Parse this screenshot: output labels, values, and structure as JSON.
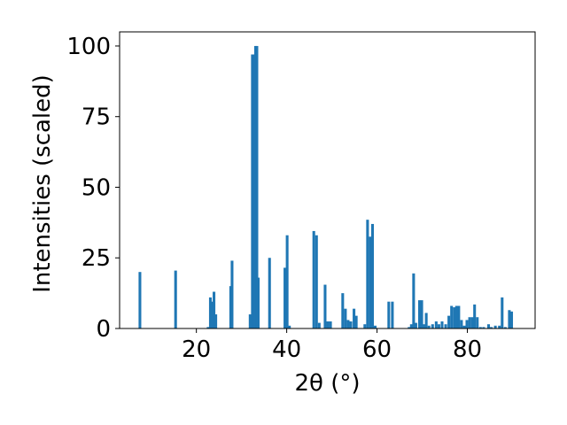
{
  "chart_data": {
    "type": "bar",
    "xlabel": "2θ (°)",
    "ylabel": "Intensities (scaled)",
    "xlim": [
      3,
      95
    ],
    "ylim": [
      0,
      105
    ],
    "xticks": [
      20,
      40,
      60,
      80
    ],
    "yticks": [
      0,
      25,
      50,
      75,
      100
    ],
    "bar_color": "#1f77b4",
    "bar_width": 0.6,
    "grid": false,
    "x": [
      7.5,
      15.4,
      22.6,
      23.1,
      23.4,
      23.9,
      24.3,
      27.6,
      27.9,
      31.9,
      32.4,
      32.8,
      33.1,
      33.4,
      33.7,
      36.2,
      39.6,
      40.1,
      40.6,
      46.0,
      46.6,
      47.2,
      48.5,
      49.1,
      49.7,
      52.4,
      53.0,
      53.6,
      54.2,
      54.9,
      55.4,
      57.3,
      57.9,
      58.5,
      59.0,
      59.6,
      62.6,
      63.4,
      67.1,
      67.6,
      68.1,
      68.6,
      69.4,
      69.9,
      70.4,
      70.9,
      71.5,
      72.3,
      73.1,
      73.7,
      74.4,
      75.2,
      75.9,
      76.5,
      77.1,
      77.6,
      78.1,
      78.7,
      79.3,
      79.9,
      80.5,
      81.1,
      81.6,
      82.2,
      82.9,
      83.6,
      84.7,
      85.3,
      86.2,
      87.1,
      87.7,
      88.4,
      89.3,
      89.8
    ],
    "values": [
      20,
      20.5,
      0.5,
      11,
      9.5,
      13,
      5,
      15,
      24,
      5,
      97,
      97,
      100,
      100,
      18,
      25,
      21.5,
      33,
      1,
      34.5,
      33,
      2,
      15.5,
      2.5,
      2.5,
      12.5,
      7,
      3,
      2.5,
      7,
      4.5,
      1.5,
      38.5,
      32.5,
      37,
      1,
      9.5,
      9.5,
      0.5,
      1.5,
      19.5,
      2,
      10,
      10,
      1.5,
      5.5,
      1,
      1.5,
      2.5,
      1.5,
      2.5,
      1.5,
      4.5,
      8,
      7.5,
      8,
      8,
      3,
      1,
      3,
      4,
      4,
      8.5,
      4,
      0.5,
      0.5,
      1.5,
      0.5,
      1,
      1,
      11,
      0.5,
      6.5,
      6
    ]
  }
}
